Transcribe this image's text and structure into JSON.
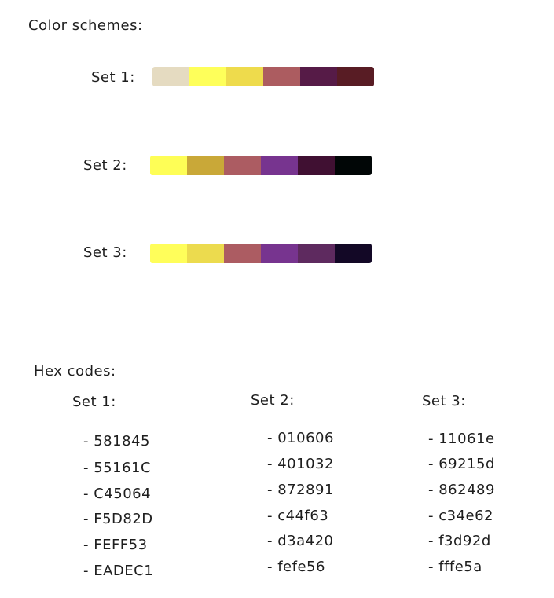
{
  "color_schemes_title": "Color schemes:",
  "hex_codes_title": "Hex codes:",
  "schemes": [
    {
      "label": "Set 1:",
      "colors": [
        "#E5DBC1",
        "#FEFF5A",
        "#EEDB4C",
        "#AC5C60",
        "#561B47",
        "#581C24"
      ]
    },
    {
      "label": "Set 2:",
      "colors": [
        "#FEFE56",
        "#C9A838",
        "#AC5C62",
        "#77348F",
        "#401032",
        "#010606"
      ]
    },
    {
      "label": "Set 3:",
      "colors": [
        "#FFFE5A",
        "#ECDB4E",
        "#AC5C62",
        "#77348F",
        "#5E2A5F",
        "#130826"
      ]
    }
  ],
  "hex_columns": [
    {
      "label": "Set 1:",
      "codes": [
        "- 581845",
        "- 55161C",
        "- C45064",
        "- F5D82D",
        "- FEFF53",
        "- EADEC1"
      ]
    },
    {
      "label": "Set 2:",
      "codes": [
        "- 010606",
        "- 401032",
        "- 872891",
        "- c44f63",
        "- d3a420",
        "- fefe56"
      ]
    },
    {
      "label": "Set 3:",
      "codes": [
        "-  11061e",
        "- 69215d",
        "- 862489",
        "- c34e62",
        "- f3d92d",
        "- fffe5a"
      ]
    }
  ]
}
